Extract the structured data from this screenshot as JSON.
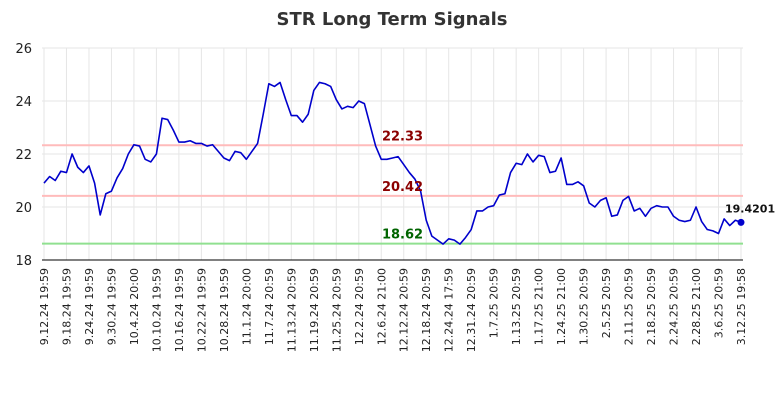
{
  "chart_data": {
    "type": "line",
    "title": "STR Long Term Signals",
    "xlabel": "",
    "ylabel": "",
    "ylim": [
      18,
      26
    ],
    "y_ticks": [
      18,
      20,
      22,
      24,
      26
    ],
    "x_tick_labels": [
      "9.12.24 19:59",
      "9.18.24 19:59",
      "9.24.24 19:59",
      "9.30.24 19:59",
      "10.4.24 20:00",
      "10.10.24 19:59",
      "10.16.24 19:59",
      "10.22.24 19:59",
      "10.28.24 19:59",
      "11.1.24 20:00",
      "11.7.24 20:59",
      "11.13.24 20:59",
      "11.19.24 20:59",
      "11.25.24 20:59",
      "12.2.24 20:59",
      "12.6.24 21:00",
      "12.12.24 20:59",
      "12.18.24 20:59",
      "12.24.24 17:59",
      "12.31.24 20:59",
      "1.7.25 20:59",
      "1.13.25 20:59",
      "1.17.25 21:00",
      "1.24.25 21:00",
      "1.30.25 20:59",
      "2.5.25 20:59",
      "2.11.25 20:59",
      "2.18.25 20:59",
      "2.24.25 20:59",
      "2.28.25 21:00",
      "3.6.25 20:59",
      "3.12.25 19:58"
    ],
    "grid": true,
    "series": [
      {
        "color": "#0000cc",
        "values": [
          20.9,
          21.15,
          21.0,
          21.35,
          21.3,
          22.0,
          21.5,
          21.3,
          21.55,
          20.9,
          19.7,
          20.5,
          20.6,
          21.1,
          21.45,
          22.0,
          22.35,
          22.3,
          21.8,
          21.7,
          22.0,
          23.35,
          23.3,
          22.9,
          22.45,
          22.45,
          22.5,
          22.4,
          22.4,
          22.3,
          22.35,
          22.1,
          21.85,
          21.75,
          22.1,
          22.05,
          21.8,
          22.1,
          22.4,
          23.5,
          24.65,
          24.55,
          24.7,
          24.05,
          23.45,
          23.45,
          23.2,
          23.5,
          24.4,
          24.7,
          24.65,
          24.55,
          24.05,
          23.7,
          23.8,
          23.75,
          24.0,
          23.9,
          23.1,
          22.3,
          21.8,
          21.8,
          21.85,
          21.9,
          21.6,
          21.3,
          21.05,
          20.6,
          19.5,
          18.9,
          18.75,
          18.6,
          18.8,
          18.75,
          18.6,
          18.85,
          19.15,
          19.85,
          19.85,
          20.0,
          20.05,
          20.45,
          20.5,
          21.3,
          21.65,
          21.6,
          22.0,
          21.7,
          21.95,
          21.9,
          21.3,
          21.35,
          21.85,
          20.85,
          20.85,
          20.95,
          20.8,
          20.15,
          20.0,
          20.25,
          20.35,
          19.65,
          19.7,
          20.25,
          20.4,
          19.85,
          19.95,
          19.65,
          19.95,
          20.05,
          20.0,
          20.0,
          19.65,
          19.5,
          19.45,
          19.5,
          20.0,
          19.45,
          19.15,
          19.1,
          19.0,
          19.55,
          19.3,
          19.5,
          19.42
        ]
      }
    ],
    "signals": [
      {
        "label": "22.33",
        "value": 22.33,
        "line_color": "#ffbbbb",
        "text_color": "#8b0000"
      },
      {
        "label": "20.42",
        "value": 20.42,
        "line_color": "#ffbbbb",
        "text_color": "#8b0000"
      },
      {
        "label": "18.62",
        "value": 18.62,
        "line_color": "#90e090",
        "text_color": "#006400"
      }
    ],
    "last_value_label": "19.4201"
  }
}
